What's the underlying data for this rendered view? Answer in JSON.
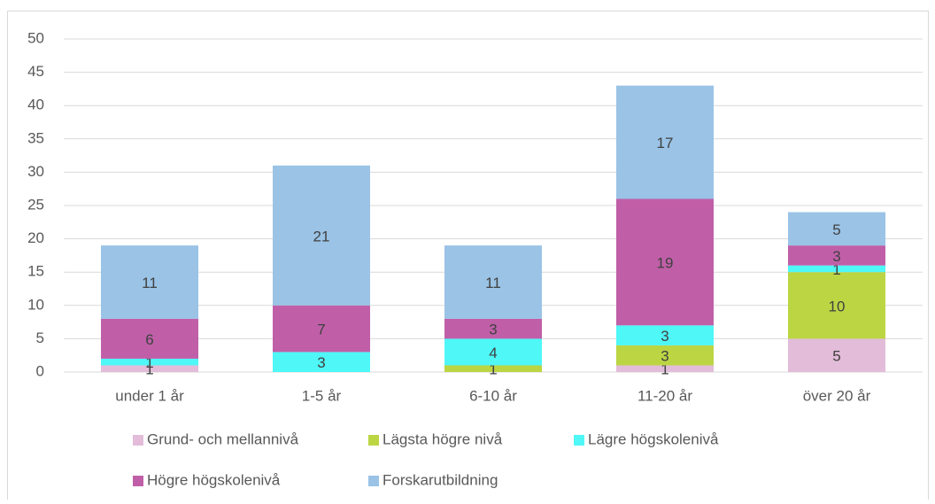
{
  "chart_data": {
    "type": "stacked_bar",
    "categories": [
      "under 1 år",
      "1-5 år",
      "6-10 år",
      "11-20 år",
      "över 20 år"
    ],
    "series": [
      {
        "name": "Grund- och mellannivå",
        "color": "#e2bcd9",
        "values": [
          1,
          0,
          0,
          1,
          5
        ]
      },
      {
        "name": "Lägsta högre nivå",
        "color": "#bcd543",
        "values": [
          0,
          0,
          1,
          3,
          10
        ]
      },
      {
        "name": "Lägre högskolenivå",
        "color": "#4ff7f7",
        "values": [
          1,
          3,
          4,
          3,
          1
        ]
      },
      {
        "name": "Högre högskolenivå",
        "color": "#c05fa8",
        "values": [
          6,
          7,
          3,
          19,
          3
        ]
      },
      {
        "name": "Forskarutbildning",
        "color": "#9ac3e6",
        "values": [
          11,
          21,
          11,
          17,
          5
        ]
      }
    ],
    "ylim": [
      0,
      50
    ],
    "yticks": [
      0,
      5,
      10,
      15,
      20,
      25,
      30,
      35,
      40,
      45,
      50
    ],
    "grid": true,
    "legend": "bottom"
  }
}
